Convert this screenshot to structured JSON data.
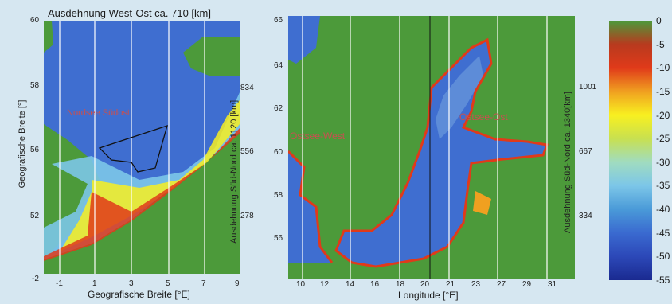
{
  "left_panel": {
    "title": "Ausdehnung West-Ost ca. 710 [km]",
    "x_ticks": [
      "-1",
      "1",
      "3",
      "5",
      "7",
      "9"
    ],
    "y_ticks": [
      "60",
      "58",
      "56",
      "52",
      "-2"
    ],
    "xlabel": "Geografische Breite [°E]",
    "ylabel": "Geografische Breite [°]",
    "right_label": "Ausdehnung Süd-Nord ca. 1120 [km]",
    "right_ticks": [
      "834",
      "556",
      "278"
    ],
    "region_label": "Nordsee Südost"
  },
  "right_panel": {
    "x_ticks": [
      "10",
      "12",
      "14",
      "16",
      "18",
      "20",
      "21",
      "23",
      "27",
      "29",
      "31"
    ],
    "y_ticks": [
      "66",
      "64",
      "62",
      "60",
      "58",
      "56"
    ],
    "xlabel": "Longitude [°E]",
    "right_label": "Ausdehnung Süd-Nord ca. 1340[km]",
    "right_ticks": [
      "1001",
      "667",
      "334"
    ],
    "region_west": "Ostsee-West",
    "region_east": "Ostsee-Ost"
  },
  "colorbar": {
    "ticks": [
      "0",
      "-5",
      "-10",
      "-15",
      "-20",
      "-25",
      "-30",
      "-35",
      "-40",
      "-45",
      "-50",
      "-55"
    ],
    "colors": [
      "#4c9a3a",
      "#b83a1e",
      "#e03a1a",
      "#f0a020",
      "#f8f020",
      "#c8e050",
      "#a0dcc0",
      "#7cc6e8",
      "#4a9ad8",
      "#3a6ad0",
      "#2c48b8",
      "#1a2a90"
    ]
  }
}
